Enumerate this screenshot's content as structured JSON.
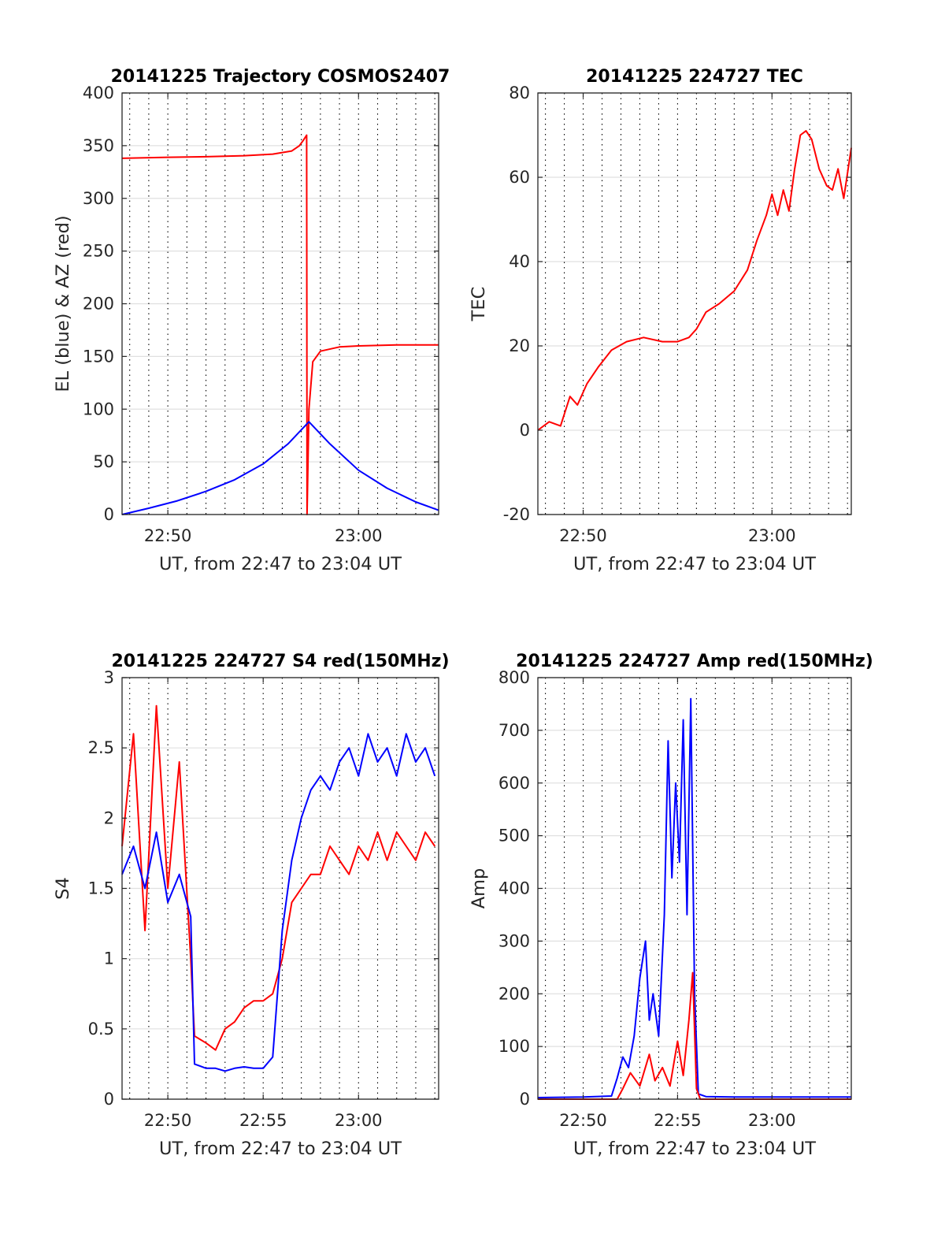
{
  "figure": {
    "background": "#ffffff",
    "grid_color": "#000000",
    "axis_color": "#262626"
  },
  "colors": {
    "red": "#ff0000",
    "blue": "#0000ff"
  },
  "chart_data": [
    {
      "id": "trajectory",
      "type": "line",
      "title": "20141225 Trajectory COSMOS2407",
      "xlabel": "UT, from 22:47 to 23:04 UT",
      "ylabel": "EL (blue) & AZ (red)",
      "x_unit": "minutes after 22:00 UT",
      "xlim": [
        47.6,
        64.2
      ],
      "ylim": [
        0,
        400
      ],
      "xticks": [
        50,
        60
      ],
      "xticklabels": [
        "22:50",
        "23:00"
      ],
      "yticks": [
        0,
        50,
        100,
        150,
        200,
        250,
        300,
        350,
        400
      ],
      "yticklabels": [
        "0",
        "50",
        "100",
        "150",
        "200",
        "250",
        "300",
        "350",
        "400"
      ],
      "grid": true,
      "series": [
        {
          "color": "#ff0000",
          "x": [
            47.6,
            50,
            52,
            54,
            55.5,
            56.5,
            56.9,
            57.1,
            57.28,
            57.3,
            57.32,
            57.4,
            57.6,
            58,
            59,
            60,
            62,
            64.2
          ],
          "y": [
            338,
            339,
            339.5,
            340.5,
            342,
            345,
            350,
            355,
            360,
            0,
            20,
            100,
            145,
            155,
            159,
            160,
            161,
            161
          ]
        },
        {
          "color": "#0000ff",
          "x": [
            47.6,
            49,
            50.5,
            52,
            53.5,
            55,
            56.3,
            57.4,
            58.5,
            60,
            61.5,
            63,
            64.2
          ],
          "y": [
            0,
            6,
            13,
            22,
            33,
            48,
            67,
            88,
            67,
            42,
            25,
            12,
            4
          ]
        }
      ]
    },
    {
      "id": "tec",
      "type": "line",
      "title": "20141225 224727 TEC",
      "xlabel": "UT, from 22:47 to 23:04 UT",
      "ylabel": "TEC",
      "x_unit": "minutes after 22:00 UT",
      "xlim": [
        47.6,
        64.2
      ],
      "ylim": [
        -20,
        80
      ],
      "xticks": [
        50,
        60
      ],
      "xticklabels": [
        "22:50",
        "23:00"
      ],
      "yticks": [
        -20,
        0,
        20,
        40,
        60,
        80
      ],
      "yticklabels": [
        "-20",
        "0",
        "20",
        "40",
        "60",
        "80"
      ],
      "grid": true,
      "series": [
        {
          "color": "#ff0000",
          "x": [
            47.6,
            48.2,
            48.8,
            49.3,
            49.7,
            50.2,
            50.8,
            51.5,
            52.3,
            53.2,
            54.2,
            55.0,
            55.6,
            56.0,
            56.5,
            57.2,
            58.0,
            58.7,
            59.2,
            59.7,
            60.0,
            60.3,
            60.6,
            60.9,
            61.2,
            61.5,
            61.8,
            62.1,
            62.5,
            62.9,
            63.2,
            63.5,
            63.8,
            64.2
          ],
          "y": [
            0,
            2,
            1,
            8,
            6,
            11,
            15,
            19,
            21,
            22,
            21,
            21,
            22,
            24,
            28,
            30,
            33,
            38,
            45,
            51,
            56,
            51,
            57,
            52,
            62,
            70,
            71,
            69,
            62,
            58,
            57,
            62,
            55,
            67
          ]
        }
      ]
    },
    {
      "id": "s4",
      "type": "line",
      "title": "20141225 224727 S4 red(150MHz)",
      "xlabel": "UT, from 22:47 to 23:04 UT",
      "ylabel": "S4",
      "x_unit": "minutes after 22:00 UT",
      "xlim": [
        47.6,
        64.2
      ],
      "ylim": [
        0,
        3
      ],
      "xticks": [
        50,
        55,
        60
      ],
      "xticklabels": [
        "22:50",
        "22:55",
        "23:00"
      ],
      "yticks": [
        0,
        0.5,
        1,
        1.5,
        2,
        2.5,
        3
      ],
      "yticklabels": [
        "0",
        "0.5",
        "1",
        "1.5",
        "2",
        "2.5",
        "3"
      ],
      "grid": true,
      "series": [
        {
          "color": "#ff0000",
          "x": [
            47.6,
            48.2,
            48.8,
            49.4,
            50.0,
            50.6,
            51.2,
            51.4,
            52.0,
            52.5,
            53.0,
            53.5,
            54.0,
            54.5,
            55.0,
            55.5,
            56.0,
            56.5,
            57.0,
            57.5,
            58.0,
            58.5,
            59.0,
            59.5,
            60.0,
            60.5,
            61.0,
            61.5,
            62.0,
            62.5,
            63.0,
            63.5,
            64.0
          ],
          "y": [
            1.8,
            2.6,
            1.2,
            2.8,
            1.5,
            2.4,
            1.0,
            0.45,
            0.4,
            0.35,
            0.5,
            0.55,
            0.65,
            0.7,
            0.7,
            0.75,
            1.0,
            1.4,
            1.5,
            1.6,
            1.6,
            1.8,
            1.7,
            1.6,
            1.8,
            1.7,
            1.9,
            1.7,
            1.9,
            1.8,
            1.7,
            1.9,
            1.8
          ]
        },
        {
          "color": "#0000ff",
          "x": [
            47.6,
            48.2,
            48.8,
            49.4,
            50.0,
            50.6,
            51.2,
            51.4,
            52.0,
            52.5,
            53.0,
            53.5,
            54.0,
            54.5,
            55.0,
            55.5,
            56.0,
            56.5,
            57.0,
            57.5,
            58.0,
            58.5,
            59.0,
            59.5,
            60.0,
            60.5,
            61.0,
            61.5,
            62.0,
            62.5,
            63.0,
            63.5,
            64.0
          ],
          "y": [
            1.6,
            1.8,
            1.5,
            1.9,
            1.4,
            1.6,
            1.3,
            0.25,
            0.22,
            0.22,
            0.2,
            0.22,
            0.23,
            0.22,
            0.22,
            0.3,
            1.2,
            1.7,
            2.0,
            2.2,
            2.3,
            2.2,
            2.4,
            2.5,
            2.3,
            2.6,
            2.4,
            2.5,
            2.3,
            2.6,
            2.4,
            2.5,
            2.3
          ]
        }
      ]
    },
    {
      "id": "amp",
      "type": "line",
      "title": "20141225 224727 Amp red(150MHz)",
      "xlabel": "UT, from 22:47 to 23:04 UT",
      "ylabel": "Amp",
      "x_unit": "minutes after 22:00 UT",
      "xlim": [
        47.6,
        64.2
      ],
      "ylim": [
        0,
        800
      ],
      "xticks": [
        50,
        55,
        60
      ],
      "xticklabels": [
        "22:50",
        "22:55",
        "23:00"
      ],
      "yticks": [
        0,
        100,
        200,
        300,
        400,
        500,
        600,
        700,
        800
      ],
      "yticklabels": [
        "0",
        "100",
        "200",
        "300",
        "400",
        "500",
        "600",
        "700",
        "800"
      ],
      "grid": true,
      "series": [
        {
          "color": "#0000ff",
          "x": [
            47.6,
            50.0,
            51.5,
            51.8,
            52.1,
            52.4,
            52.7,
            53.0,
            53.3,
            53.5,
            53.7,
            54.0,
            54.3,
            54.5,
            54.7,
            54.9,
            55.1,
            55.3,
            55.5,
            55.7,
            55.9,
            56.1,
            56.5,
            58.0,
            60.0,
            62.0,
            64.2
          ],
          "y": [
            3,
            4,
            6,
            40,
            80,
            60,
            120,
            230,
            300,
            150,
            200,
            120,
            350,
            680,
            420,
            600,
            450,
            720,
            350,
            760,
            200,
            10,
            5,
            4,
            4,
            4,
            4
          ]
        },
        {
          "color": "#ff0000",
          "x": [
            47.6,
            51.8,
            52.1,
            52.5,
            53.0,
            53.5,
            53.8,
            54.2,
            54.6,
            55.0,
            55.3,
            55.6,
            55.8,
            56.0,
            56.2,
            64.2
          ],
          "y": [
            0,
            0,
            20,
            50,
            25,
            85,
            35,
            60,
            25,
            110,
            45,
            150,
            240,
            20,
            0,
            0
          ]
        }
      ]
    }
  ]
}
